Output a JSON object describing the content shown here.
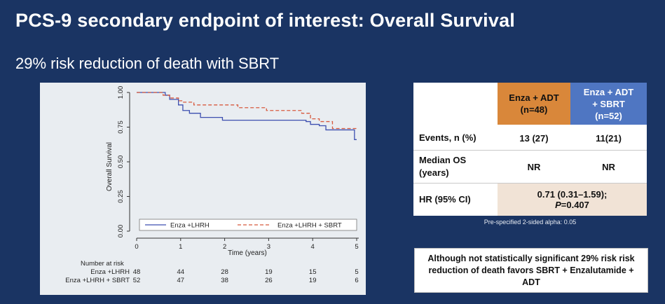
{
  "slide": {
    "title": "PCS-9 secondary endpoint of interest: Overall Survival",
    "subtitle": "29% risk reduction of death with SBRT"
  },
  "chart_data": {
    "type": "line",
    "xlabel": "Time (years)",
    "ylabel": "Overall Survival",
    "xlim": [
      0,
      5
    ],
    "ylim": [
      0,
      1
    ],
    "x_ticks": [
      "0",
      "1",
      "2",
      "3",
      "4",
      "5"
    ],
    "y_ticks": [
      "0.00",
      "0.25",
      "0.50",
      "0.75",
      "1.00"
    ],
    "grid": false,
    "legend_placement": "bottom",
    "series": [
      {
        "name": "Enza +LHRH",
        "color": "#3d4fb0",
        "style": "solid",
        "x": [
          0,
          0.65,
          0.75,
          0.95,
          1.05,
          1.2,
          1.45,
          1.95,
          3.85,
          3.95,
          4.15,
          4.3,
          4.75,
          4.95
        ],
        "y": [
          1.0,
          0.98,
          0.95,
          0.91,
          0.87,
          0.85,
          0.82,
          0.8,
          0.79,
          0.77,
          0.76,
          0.73,
          0.73,
          0.66
        ]
      },
      {
        "name": "Enza +LHRH + SBRT",
        "color": "#d75a3f",
        "style": "dashed",
        "x": [
          0,
          0.6,
          0.75,
          0.95,
          1.05,
          1.3,
          2.3,
          2.95,
          3.75,
          3.95,
          4.15,
          4.45,
          4.95
        ],
        "y": [
          1.0,
          0.98,
          0.96,
          0.94,
          0.93,
          0.91,
          0.89,
          0.87,
          0.85,
          0.81,
          0.79,
          0.74,
          0.74
        ]
      }
    ],
    "risk_table": {
      "heading": "Number at risk",
      "rows": [
        {
          "label": "Enza +LHRH",
          "counts": [
            "48",
            "44",
            "28",
            "19",
            "15",
            "5"
          ]
        },
        {
          "label": "Enza +LHRH + SBRT",
          "counts": [
            "52",
            "47",
            "38",
            "26",
            "19",
            "6"
          ]
        }
      ]
    }
  },
  "table": {
    "col1_line1": "Enza + ADT",
    "col1_line2": "(n=48)",
    "col2_line1": "Enza + ADT",
    "col2_line2": "+ SBRT",
    "col2_line3": "(n=52)",
    "events_label": "Events, n (%)",
    "events_col1": "13 (27)",
    "events_col2": "11(21)",
    "median_label_line1": "Median OS",
    "median_label_line2": "(years)",
    "median_col1": "NR",
    "median_col2": "NR",
    "hr_label": "HR (95% CI)",
    "hr_value_line1": "0.71 (0.31–1.59);",
    "hr_p_letter": "P",
    "hr_p_value": "=0.407",
    "footnote": "Pre-specified 2-sided alpha: 0.05",
    "colors": {
      "enza": "#d9873a",
      "sbrt": "#4f76c2",
      "hr_bg": "#f1e3d6"
    }
  },
  "callout": {
    "text": "Although not statistically significant 29% risk risk reduction of death favors SBRT + Enzalutamide + ADT"
  }
}
